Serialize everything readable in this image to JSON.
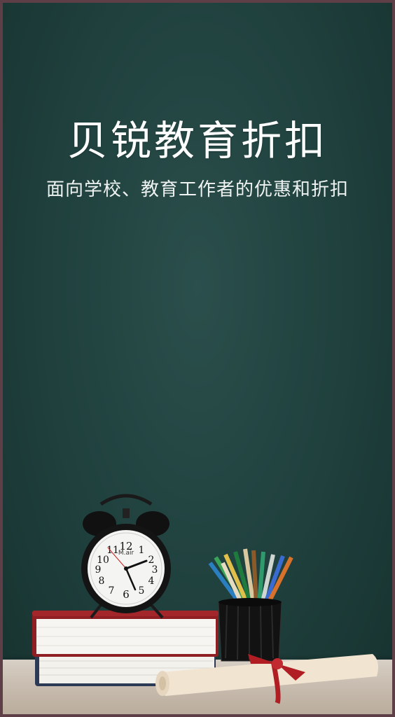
{
  "hero": {
    "title": "贝锐教育折扣",
    "subtitle": "面向学校、教育工作者的优惠和折扣"
  },
  "clock": {
    "brand": "M.air",
    "numerals": [
      "12",
      "1",
      "2",
      "3",
      "4",
      "5",
      "6",
      "7",
      "8",
      "9",
      "10",
      "11"
    ]
  },
  "colors": {
    "chalkboard": "#1f403d",
    "frame": "#5e3f48",
    "title_text": "#ffffff",
    "desk": "#c9beb1",
    "ribbon": "#b01e24"
  }
}
